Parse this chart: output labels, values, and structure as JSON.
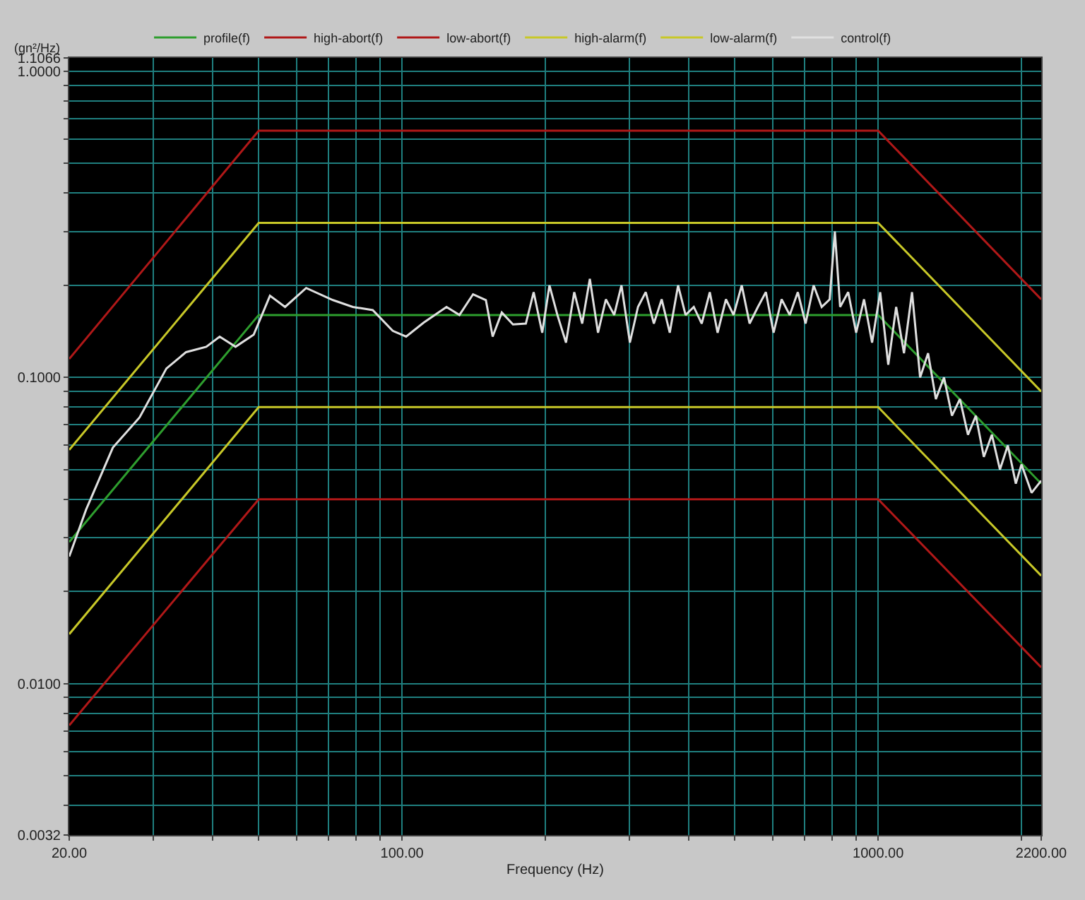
{
  "chart_data": {
    "type": "line",
    "xlabel": "Frequency (Hz)",
    "ylabel": "(gn²/Hz)",
    "log": "xy",
    "grid": true,
    "legend": "top left",
    "marker": "none",
    "line_style": "solid",
    "xlim": [
      20,
      2200
    ],
    "ylim": [
      0.0032,
      1.1066
    ],
    "xticks": [
      {
        "value": 20,
        "label": "20.00"
      },
      {
        "value": 30,
        "label": null
      },
      {
        "value": 40,
        "label": null
      },
      {
        "value": 50,
        "label": null
      },
      {
        "value": 60,
        "label": null
      },
      {
        "value": 70,
        "label": null
      },
      {
        "value": 80,
        "label": null
      },
      {
        "value": 90,
        "label": null
      },
      {
        "value": 100,
        "label": "100.00"
      },
      {
        "value": 200,
        "label": null
      },
      {
        "value": 300,
        "label": null
      },
      {
        "value": 400,
        "label": null
      },
      {
        "value": 500,
        "label": null
      },
      {
        "value": 600,
        "label": null
      },
      {
        "value": 700,
        "label": null
      },
      {
        "value": 800,
        "label": null
      },
      {
        "value": 900,
        "label": null
      },
      {
        "value": 1000,
        "label": "1000.00"
      },
      {
        "value": 2000,
        "label": null
      },
      {
        "value": 2200,
        "label": "2200.00"
      }
    ],
    "yticks": [
      {
        "value": 0.0032,
        "label": "0.0032"
      },
      {
        "value": 0.004,
        "label": null
      },
      {
        "value": 0.005,
        "label": null
      },
      {
        "value": 0.006,
        "label": null
      },
      {
        "value": 0.007,
        "label": null
      },
      {
        "value": 0.008,
        "label": null
      },
      {
        "value": 0.009,
        "label": null
      },
      {
        "value": 0.01,
        "label": "0.0100"
      },
      {
        "value": 0.02,
        "label": null
      },
      {
        "value": 0.03,
        "label": null
      },
      {
        "value": 0.04,
        "label": null
      },
      {
        "value": 0.05,
        "label": null
      },
      {
        "value": 0.06,
        "label": null
      },
      {
        "value": 0.07,
        "label": null
      },
      {
        "value": 0.08,
        "label": null
      },
      {
        "value": 0.09,
        "label": null
      },
      {
        "value": 0.1,
        "label": "0.1000"
      },
      {
        "value": 0.2,
        "label": null
      },
      {
        "value": 0.3,
        "label": null
      },
      {
        "value": 0.4,
        "label": null
      },
      {
        "value": 0.5,
        "label": null
      },
      {
        "value": 0.6,
        "label": null
      },
      {
        "value": 0.7,
        "label": null
      },
      {
        "value": 0.8,
        "label": null
      },
      {
        "value": 0.9,
        "label": null
      },
      {
        "value": 1.0,
        "label": "1.0000"
      },
      {
        "value": 1.1066,
        "label": "1.1066"
      }
    ],
    "series": [
      {
        "name": "profile(f)",
        "color": "#2e9e2e",
        "x": [
          20,
          50,
          1000,
          2200
        ],
        "values": [
          0.029,
          0.16,
          0.16,
          0.045
        ]
      },
      {
        "name": "high-abort(f)",
        "color": "#b01818",
        "x": [
          20,
          50,
          1000,
          2200
        ],
        "values": [
          0.115,
          0.64,
          0.64,
          0.18
        ]
      },
      {
        "name": "low-abort(f)",
        "color": "#b01818",
        "x": [
          20,
          50,
          1000,
          2200
        ],
        "values": [
          0.0073,
          0.04,
          0.04,
          0.0113
        ]
      },
      {
        "name": "high-alarm(f)",
        "color": "#c8c828",
        "x": [
          20,
          50,
          1000,
          2200
        ],
        "values": [
          0.058,
          0.32,
          0.32,
          0.09
        ]
      },
      {
        "name": "low-alarm(f)",
        "color": "#c8c828",
        "x": [
          20,
          50,
          1000,
          2200
        ],
        "values": [
          0.0145,
          0.08,
          0.08,
          0.0225
        ]
      },
      {
        "name": "control(f)",
        "color": "#e0e0e0",
        "x": [
          20,
          21.7,
          24.7,
          28.1,
          32,
          35.2,
          38.8,
          41.4,
          44.7,
          48.8,
          52.8,
          56.8,
          62.9,
          71.6,
          78.8,
          86.8,
          95.6,
          102,
          111,
          124,
          132,
          141,
          150,
          155,
          162,
          171,
          182,
          189,
          197,
          204,
          212,
          221,
          230,
          239,
          248,
          258,
          268,
          279,
          289,
          301,
          313,
          325,
          338,
          351,
          365,
          380,
          394,
          410,
          426,
          443,
          460,
          479,
          497,
          517,
          537,
          559,
          581,
          603,
          627,
          652,
          678,
          704,
          732,
          761,
          791,
          811,
          832,
          865,
          899,
          934,
          971,
          1010,
          1050,
          1091,
          1133,
          1178,
          1225,
          1273,
          1322,
          1375,
          1429,
          1485,
          1544,
          1604,
          1667,
          1733,
          1802,
          1872,
          1946,
          2000,
          2100,
          2200
        ],
        "values": [
          0.026,
          0.037,
          0.059,
          0.074,
          0.107,
          0.121,
          0.126,
          0.136,
          0.126,
          0.138,
          0.185,
          0.17,
          0.196,
          0.179,
          0.17,
          0.166,
          0.142,
          0.136,
          0.151,
          0.17,
          0.16,
          0.187,
          0.179,
          0.136,
          0.163,
          0.149,
          0.15,
          0.19,
          0.14,
          0.2,
          0.16,
          0.13,
          0.19,
          0.15,
          0.21,
          0.14,
          0.18,
          0.16,
          0.2,
          0.13,
          0.17,
          0.19,
          0.15,
          0.18,
          0.14,
          0.2,
          0.16,
          0.17,
          0.15,
          0.19,
          0.14,
          0.18,
          0.16,
          0.2,
          0.15,
          0.17,
          0.19,
          0.14,
          0.18,
          0.16,
          0.19,
          0.15,
          0.2,
          0.17,
          0.18,
          0.3,
          0.17,
          0.19,
          0.14,
          0.18,
          0.13,
          0.19,
          0.11,
          0.17,
          0.12,
          0.19,
          0.1,
          0.12,
          0.085,
          0.1,
          0.075,
          0.085,
          0.065,
          0.075,
          0.055,
          0.065,
          0.05,
          0.06,
          0.045,
          0.052,
          0.042,
          0.046
        ]
      }
    ]
  }
}
